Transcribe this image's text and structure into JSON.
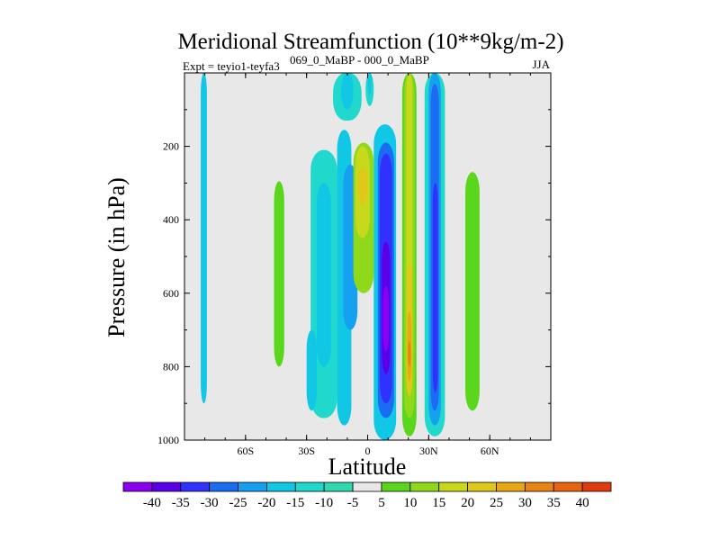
{
  "chart_data": {
    "type": "heatmap",
    "title": "Meridional Streamfunction (10**9kg/m-2)",
    "experiment_prefix": "Expt = teyio1-teyfa3",
    "experiment_suffix": "069_0_MaBP - 000_0_MaBP",
    "season": "JJA",
    "xlabel": "Latitude",
    "ylabel": "Pressure (in hPa)",
    "xlim": [
      -90,
      90
    ],
    "ylim": [
      1000,
      0
    ],
    "x_ticks": [
      {
        "value": -60,
        "label": "60S"
      },
      {
        "value": -30,
        "label": "30S"
      },
      {
        "value": 0,
        "label": "0"
      },
      {
        "value": 30,
        "label": "30N"
      },
      {
        "value": 60,
        "label": "60N"
      }
    ],
    "y_ticks": [
      {
        "value": 200,
        "label": "200"
      },
      {
        "value": 400,
        "label": "400"
      },
      {
        "value": 600,
        "label": "600"
      },
      {
        "value": 800,
        "label": "800"
      },
      {
        "value": 1000,
        "label": "1000"
      }
    ],
    "missing_color": "#e8e8e8",
    "colorbar": {
      "labels": [
        "-40",
        "-35",
        "-30",
        "-25",
        "-20",
        "-15",
        "-10",
        "-5",
        "5",
        "10",
        "15",
        "20",
        "25",
        "30",
        "35",
        "40"
      ],
      "colors": [
        "#8a00f0",
        "#5a00e8",
        "#3030ff",
        "#1a6cf2",
        "#16a0f0",
        "#10c8e6",
        "#20d8cc",
        "#30d8b0",
        "#e8e8e8",
        "#5ad61c",
        "#90d81a",
        "#c8d81a",
        "#e0c81a",
        "#e8a814",
        "#e88414",
        "#e86410",
        "#e03a10"
      ]
    },
    "contour_cells": [
      {
        "lat_min": -82,
        "lat_max": -79,
        "p_min": 0,
        "p_max": 900,
        "level": 5
      },
      {
        "lat_min": -46,
        "lat_max": -41,
        "p_min": 295,
        "p_max": 800,
        "level": 9
      },
      {
        "lat_min": -28,
        "lat_max": -15,
        "p_min": 210,
        "p_max": 940,
        "level": 6
      },
      {
        "lat_min": -25,
        "lat_max": -18,
        "p_min": 300,
        "p_max": 800,
        "level": 5
      },
      {
        "lat_min": -15,
        "lat_max": -8,
        "p_min": 155,
        "p_max": 960,
        "level": 5
      },
      {
        "lat_min": -12,
        "lat_max": -5,
        "p_min": 250,
        "p_max": 700,
        "level": 4
      },
      {
        "lat_min": -17,
        "lat_max": -3,
        "p_min": 0,
        "p_max": 130,
        "level": 6
      },
      {
        "lat_min": -13,
        "lat_max": -7,
        "p_min": 0,
        "p_max": 100,
        "level": 5
      },
      {
        "lat_min": -7,
        "lat_max": 3,
        "p_min": 190,
        "p_max": 600,
        "level": 10
      },
      {
        "lat_min": -6,
        "lat_max": 1,
        "p_min": 200,
        "p_max": 450,
        "level": 11
      },
      {
        "lat_min": -5,
        "lat_max": 0,
        "p_min": 260,
        "p_max": 360,
        "level": 12
      },
      {
        "lat_min": 3,
        "lat_max": 14,
        "p_min": 140,
        "p_max": 1000,
        "level": 5
      },
      {
        "lat_min": 5,
        "lat_max": 13,
        "p_min": 190,
        "p_max": 940,
        "level": 3
      },
      {
        "lat_min": 6,
        "lat_max": 12,
        "p_min": 220,
        "p_max": 900,
        "level": 2
      },
      {
        "lat_min": 7,
        "lat_max": 11,
        "p_min": 460,
        "p_max": 820,
        "level": 1
      },
      {
        "lat_min": 7.5,
        "lat_max": 10.5,
        "p_min": 580,
        "p_max": 760,
        "level": 0
      },
      {
        "lat_min": -1,
        "lat_max": 3,
        "p_min": 0,
        "p_max": 90,
        "level": 6
      },
      {
        "lat_min": 0,
        "lat_max": 2,
        "p_min": 0,
        "p_max": 60,
        "level": 5
      },
      {
        "lat_min": 17,
        "lat_max": 24,
        "p_min": 0,
        "p_max": 990,
        "level": 9
      },
      {
        "lat_min": 18,
        "lat_max": 23,
        "p_min": 0,
        "p_max": 940,
        "level": 10
      },
      {
        "lat_min": 19,
        "lat_max": 22,
        "p_min": 0,
        "p_max": 880,
        "level": 11
      },
      {
        "lat_min": 19,
        "lat_max": 22,
        "p_min": 520,
        "p_max": 880,
        "level": 12
      },
      {
        "lat_min": 19.5,
        "lat_max": 21.5,
        "p_min": 650,
        "p_max": 840,
        "level": 13
      },
      {
        "lat_min": 19.8,
        "lat_max": 21.2,
        "p_min": 730,
        "p_max": 800,
        "level": 14
      },
      {
        "lat_min": 28,
        "lat_max": 38,
        "p_min": 0,
        "p_max": 990,
        "level": 6
      },
      {
        "lat_min": 30,
        "lat_max": 36,
        "p_min": 0,
        "p_max": 960,
        "level": 4
      },
      {
        "lat_min": 31,
        "lat_max": 35,
        "p_min": 30,
        "p_max": 920,
        "level": 3
      },
      {
        "lat_min": 32,
        "lat_max": 34.5,
        "p_min": 300,
        "p_max": 870,
        "level": 2
      },
      {
        "lat_min": 48,
        "lat_max": 55,
        "p_min": 270,
        "p_max": 920,
        "level": 9
      },
      {
        "lat_min": -30,
        "lat_max": -25,
        "p_min": 700,
        "p_max": 920,
        "level": 5
      }
    ]
  }
}
